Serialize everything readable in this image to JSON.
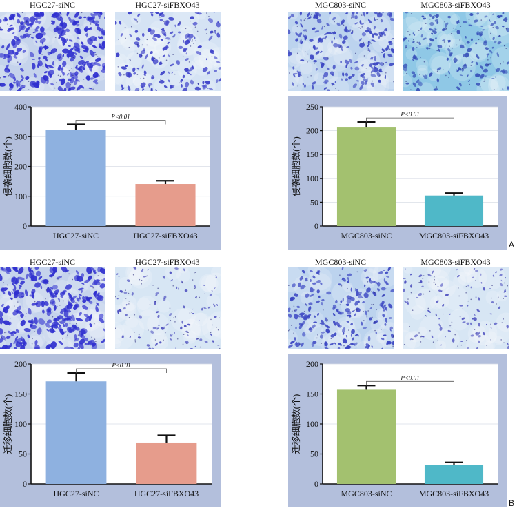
{
  "panel_letters": [
    "A",
    "B"
  ],
  "figures": [
    {
      "images": [
        {
          "caption": "HGC27-siNC",
          "stain": "dense-blue"
        },
        {
          "caption": "HGC27-siFBXO43",
          "stain": "sparse-blue"
        }
      ],
      "bar_colors": [
        "#8eb1e0",
        "#e69c8c"
      ]
    },
    {
      "images": [
        {
          "caption": "MGC803-siNC",
          "stain": "medium-blue"
        },
        {
          "caption": "MGC803-siFBXO43",
          "stain": "light-blue"
        }
      ],
      "bar_colors": [
        "#a3c16f",
        "#4fb8c8"
      ]
    },
    {
      "images": [
        {
          "caption": "HGC27-siNC",
          "stain": "dense-blue"
        },
        {
          "caption": "HGC27-siFBXO43",
          "stain": "very-sparse"
        }
      ],
      "bar_colors": [
        "#8eb1e0",
        "#e69c8c"
      ]
    },
    {
      "images": [
        {
          "caption": "MGC803-siNC",
          "stain": "medium-blue"
        },
        {
          "caption": "MGC803-siFBXO43",
          "stain": "very-sparse"
        }
      ],
      "bar_colors": [
        "#a3c16f",
        "#4fb8c8"
      ]
    }
  ],
  "chart_data": [
    {
      "type": "bar",
      "categories": [
        "HGC27-siNC",
        "HGC27-siFBXO43"
      ],
      "values": [
        323,
        141
      ],
      "errors": [
        18,
        11
      ],
      "ylabel": "侵袭细胞数(个)",
      "ylim": [
        0,
        400
      ],
      "yticks": [
        "0",
        "100",
        "200",
        "300",
        "400"
      ],
      "annotation": "P<0.01",
      "grid": true
    },
    {
      "type": "bar",
      "categories": [
        "MGC803-siNC",
        "MGC803-siFBXO43"
      ],
      "values": [
        208,
        64
      ],
      "errors": [
        10,
        5
      ],
      "ylabel": "侵袭细胞数(个)",
      "ylim": [
        0,
        250
      ],
      "yticks": [
        "0",
        "50",
        "100",
        "150",
        "200",
        "250"
      ],
      "annotation": "P<0.01",
      "grid": true
    },
    {
      "type": "bar",
      "categories": [
        "HGC27-siNC",
        "HGC27-siFBXO43"
      ],
      "values": [
        171,
        69
      ],
      "errors": [
        14,
        12
      ],
      "ylabel": "迁移细胞数(个)",
      "ylim": [
        0,
        200
      ],
      "yticks": [
        "0",
        "50",
        "100",
        "150",
        "200"
      ],
      "annotation": "P<0.01",
      "grid": true
    },
    {
      "type": "bar",
      "categories": [
        "MGC803-siNC",
        "MGC803-siFBXO43"
      ],
      "values": [
        157,
        32
      ],
      "errors": [
        7,
        4
      ],
      "ylabel": "迁移细胞数(个)",
      "ylim": [
        0,
        200
      ],
      "yticks": [
        "0",
        "50",
        "100",
        "150",
        "200"
      ],
      "annotation": "P<0.01",
      "grid": true
    }
  ]
}
